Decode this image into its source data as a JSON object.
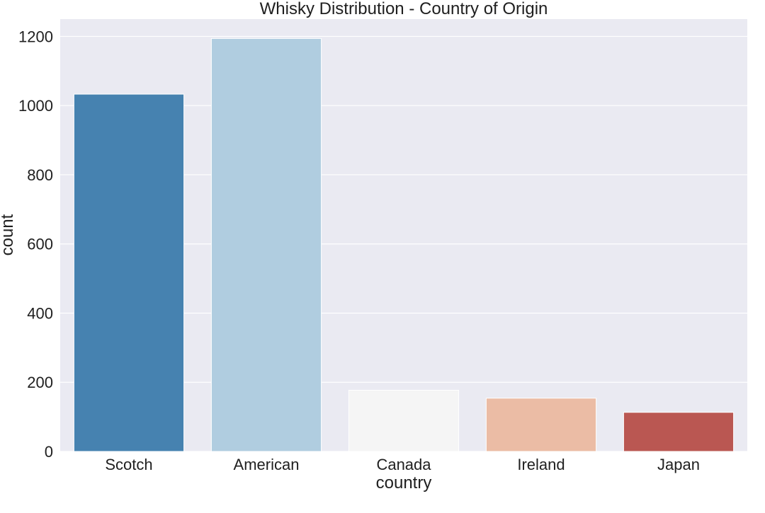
{
  "chart_data": {
    "type": "bar",
    "title": "Whisky Distribution - Country of Origin",
    "xlabel": "country",
    "ylabel": "count",
    "categories": [
      "Scotch",
      "American",
      "Canada",
      "Ireland",
      "Japan"
    ],
    "values": [
      1033,
      1194,
      177,
      154,
      113
    ],
    "ylim": [
      0,
      1250
    ],
    "yticks": [
      0,
      200,
      400,
      600,
      800,
      1000,
      1200
    ],
    "ytick_labels": [
      "0",
      "200",
      "400",
      "600",
      "800",
      "1000",
      "1200"
    ],
    "grid": true,
    "legend": "none",
    "colors": {
      "plot_background": "#eaeaf2",
      "grid": "#ffffff",
      "bars": [
        "#4682b0",
        "#b0cde0",
        "#f5f5f5",
        "#ebbca5",
        "#ba5752"
      ]
    }
  }
}
